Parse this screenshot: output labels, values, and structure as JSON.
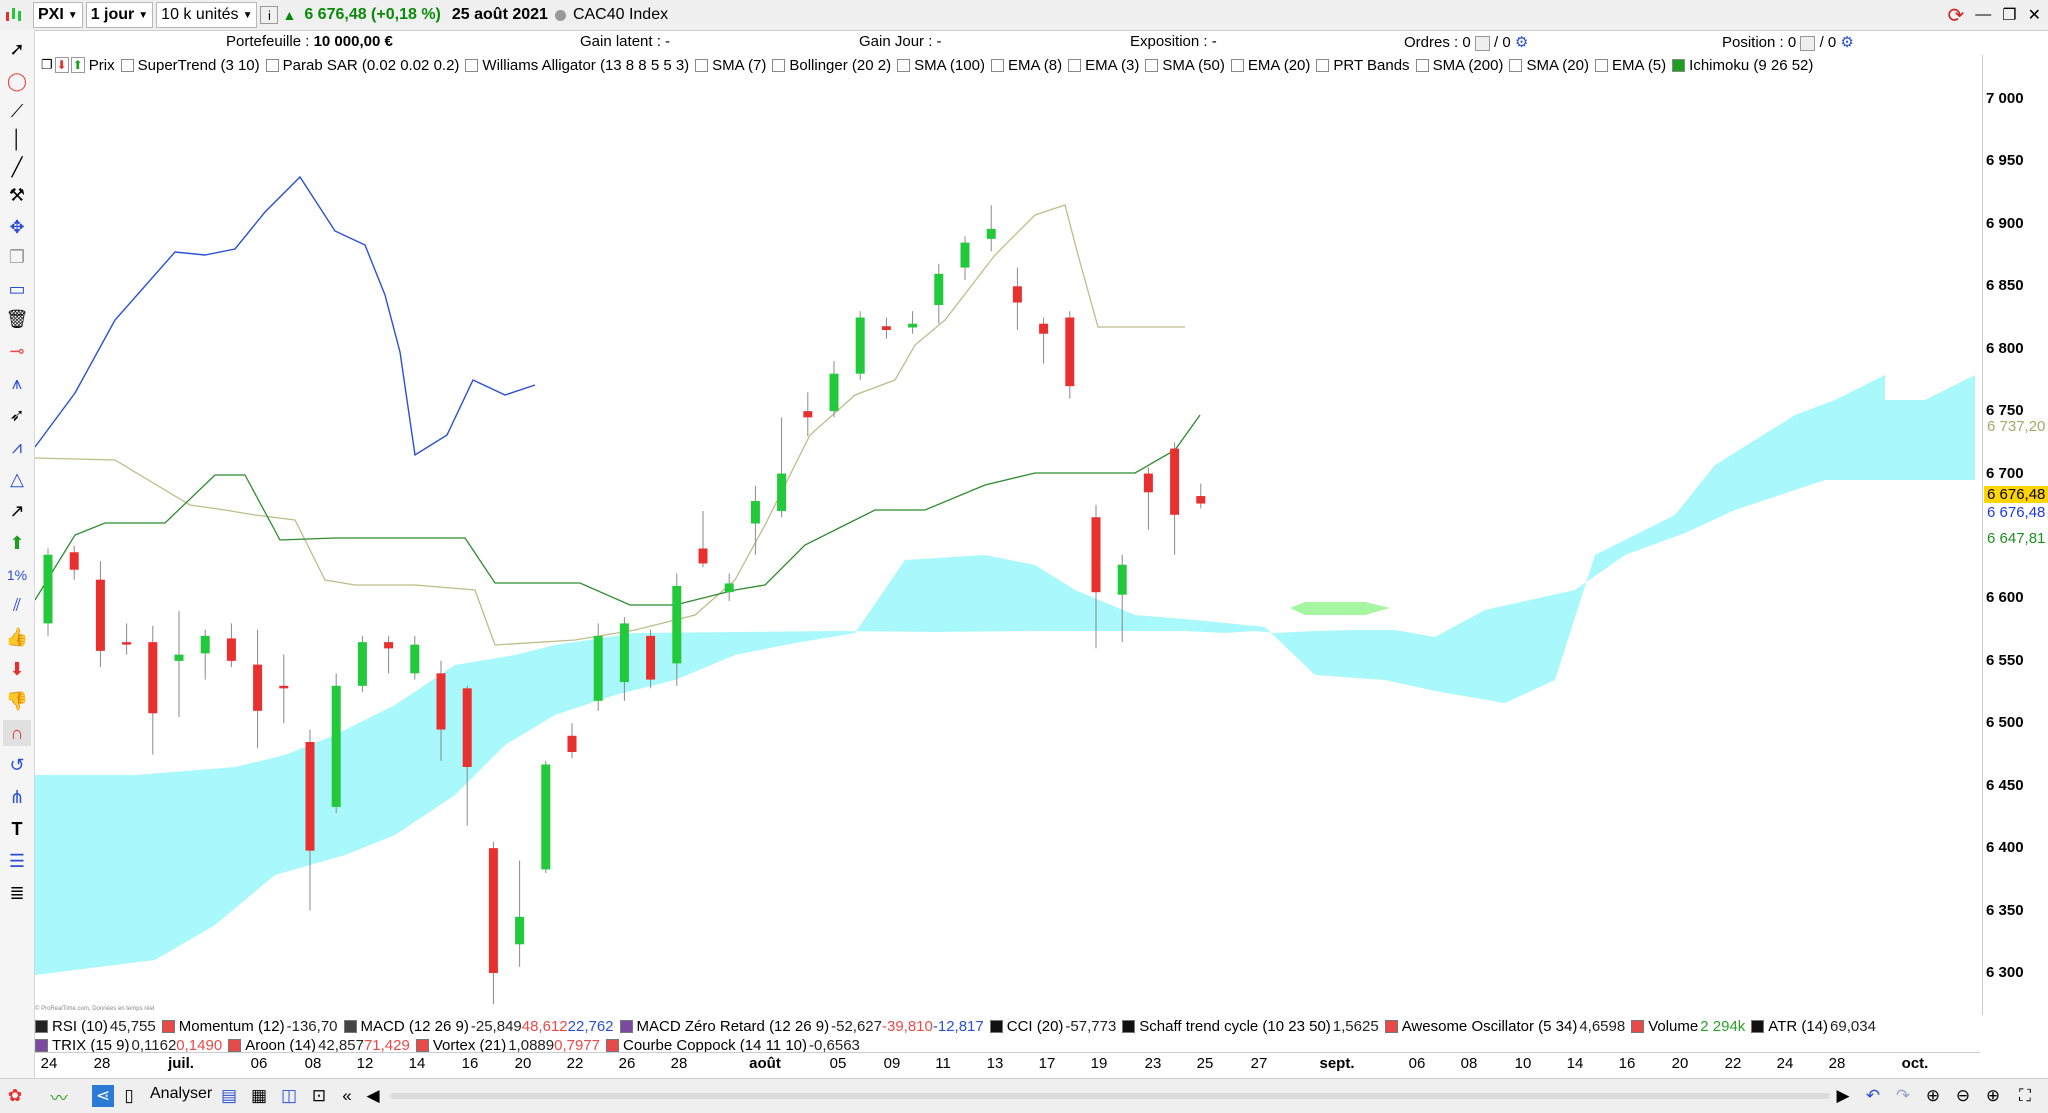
{
  "toolbar": {
    "instrument": "PXI",
    "timeframe": "1 jour",
    "units": "10 k unités",
    "price": "6 676,48 (+0,18 %)",
    "date": "25 août 2021",
    "index_name": "CAC40 Index"
  },
  "status": {
    "portefeuille_label": "Portefeuille :",
    "portefeuille_value": "10 000,00 €",
    "gain_latent": "Gain latent : -",
    "gain_jour": "Gain Jour : -",
    "exposition": "Exposition : -",
    "ordres_label": "Ordres :",
    "ordres_v1": "0",
    "ordres_v2": "/ 0",
    "position_label": "Position :",
    "position_v1": "0",
    "position_v2": "/ 0"
  },
  "legend": [
    "Prix",
    "SuperTrend (3 10)",
    "Parab SAR (0.02 0.02 0.2)",
    "Williams Alligator (13 8 8 5 5 3)",
    "SMA (7)",
    "Bollinger (20 2)",
    "SMA (100)",
    "EMA (8)",
    "EMA (3)",
    "SMA (50)",
    "EMA (20)",
    "PRT Bands",
    "SMA (200)",
    "SMA (20)",
    "EMA (5)",
    "Ichimoku (9 26 52)"
  ],
  "indicators_row1": [
    {
      "name": "RSI (10)",
      "values": [
        "45,755"
      ],
      "color": "#222222"
    },
    {
      "name": "Momentum (12)",
      "values": [
        "-136,70"
      ],
      "color": "#e84a4a"
    },
    {
      "name": "MACD (12 26 9)",
      "values": [
        "-25,849",
        "48,612",
        "22,762"
      ],
      "color": "#444444"
    },
    {
      "name": "MACD Zéro Retard (12 26 9)",
      "values": [
        "-52,627",
        "-39,810",
        "-12,817"
      ],
      "color": "#7b4aa0"
    },
    {
      "name": "CCI (20)",
      "values": [
        "-57,773"
      ],
      "color": "#111111"
    },
    {
      "name": "Schaff trend cycle (10 23 50)",
      "values": [
        "1,5625"
      ],
      "color": "#111111"
    },
    {
      "name": "Awesome Oscillator (5 34)",
      "values": [
        "4,6598"
      ],
      "color": "#e84a4a"
    },
    {
      "name": "Volume",
      "values": [
        "2 294k"
      ],
      "color": "#e84a4a"
    },
    {
      "name": "ATR (14)",
      "values": [
        "69,034"
      ],
      "color": "#111111"
    }
  ],
  "indicators_row2": [
    {
      "name": "TRIX (15 9)",
      "values": [
        "0,1162",
        "0,1490"
      ],
      "color": "#7b4aa0"
    },
    {
      "name": "Aroon (14)",
      "values": [
        "42,857",
        "71,429"
      ],
      "color": "#e84a4a"
    },
    {
      "name": "Vortex (21)",
      "values": [
        "1,0889",
        "0,7977"
      ],
      "color": "#e84a4a"
    },
    {
      "name": "Courbe Coppock (14 11 10)",
      "values": [
        "-0,6563"
      ],
      "color": "#e84a4a"
    }
  ],
  "y_axis": [
    "7 000",
    "6 950",
    "6 900",
    "6 850",
    "6 800",
    "6 750",
    "6 700",
    "6 650",
    "6 600",
    "6 550",
    "6 500",
    "6 450",
    "6 400",
    "6 350",
    "6 300"
  ],
  "y_tags": [
    {
      "text": "6 737,20",
      "color": "#a8a86a",
      "bg": "#ffffff"
    },
    {
      "text": "6 676,48",
      "color": "#000000",
      "bg": "#ffd400"
    },
    {
      "text": "6 676,48",
      "color": "#1e3ad9",
      "bg": "#ffffff"
    },
    {
      "text": "6 647,81",
      "color": "#1f8f1f",
      "bg": "#ffffff"
    }
  ],
  "x_axis": [
    "24",
    "28",
    "juil.",
    "06",
    "08",
    "12",
    "14",
    "16",
    "20",
    "22",
    "26",
    "28",
    "août",
    "05",
    "09",
    "11",
    "13",
    "17",
    "19",
    "23",
    "25",
    "27",
    "sept.",
    "06",
    "08",
    "10",
    "14",
    "16",
    "20",
    "22",
    "24",
    "28",
    "oct."
  ],
  "bottom": {
    "analyser": "Analyser"
  },
  "watermark": "© ProRealTime.com, Données en temps réel",
  "colors": {
    "up": "#22c93a",
    "down": "#e8302f",
    "cloud": "#a9f8fb",
    "cloud_green": "#a6f5a0",
    "tenkan": "#2a4fd6",
    "kijun": "#2e8b2e",
    "chikou": "#bdbd8a"
  },
  "chart_data": {
    "type": "candlestick",
    "series_name": "CAC40 Index",
    "candles": [
      {
        "d": "24 juin",
        "o": 6580,
        "h": 6640,
        "l": 6570,
        "c": 6635
      },
      {
        "d": "25 juin",
        "o": 6637,
        "h": 6642,
        "l": 6615,
        "c": 6623
      },
      {
        "d": "28 juin",
        "o": 6615,
        "h": 6630,
        "l": 6545,
        "c": 6558
      },
      {
        "d": "29 juin",
        "o": 6565,
        "h": 6580,
        "l": 6555,
        "c": 6563
      },
      {
        "d": "30 juin",
        "o": 6565,
        "h": 6578,
        "l": 6475,
        "c": 6508
      },
      {
        "d": "01 juil.",
        "o": 6550,
        "h": 6590,
        "l": 6505,
        "c": 6555
      },
      {
        "d": "02 juil.",
        "o": 6556,
        "h": 6575,
        "l": 6535,
        "c": 6570
      },
      {
        "d": "05 juil.",
        "o": 6568,
        "h": 6580,
        "l": 6545,
        "c": 6550
      },
      {
        "d": "06 juil.",
        "o": 6547,
        "h": 6575,
        "l": 6480,
        "c": 6510
      },
      {
        "d": "07 juil.",
        "o": 6530,
        "h": 6555,
        "l": 6500,
        "c": 6528
      },
      {
        "d": "08 juil.",
        "o": 6485,
        "h": 6495,
        "l": 6350,
        "c": 6398
      },
      {
        "d": "09 juil.",
        "o": 6433,
        "h": 6540,
        "l": 6428,
        "c": 6530
      },
      {
        "d": "12 juil.",
        "o": 6530,
        "h": 6570,
        "l": 6525,
        "c": 6565
      },
      {
        "d": "13 juil.",
        "o": 6565,
        "h": 6570,
        "l": 6540,
        "c": 6560
      },
      {
        "d": "14 juil.",
        "o": 6540,
        "h": 6570,
        "l": 6535,
        "c": 6563
      },
      {
        "d": "15 juil.",
        "o": 6540,
        "h": 6550,
        "l": 6470,
        "c": 6495
      },
      {
        "d": "16 juil.",
        "o": 6528,
        "h": 6530,
        "l": 6418,
        "c": 6465
      },
      {
        "d": "19 juil.",
        "o": 6400,
        "h": 6405,
        "l": 6275,
        "c": 6300
      },
      {
        "d": "20 juil.",
        "o": 6323,
        "h": 6390,
        "l": 6305,
        "c": 6345
      },
      {
        "d": "21 juil.",
        "o": 6383,
        "h": 6470,
        "l": 6380,
        "c": 6467
      },
      {
        "d": "22 juil.",
        "o": 6490,
        "h": 6500,
        "l": 6472,
        "c": 6477
      },
      {
        "d": "23 juil.",
        "o": 6518,
        "h": 6580,
        "l": 6510,
        "c": 6570
      },
      {
        "d": "26 juil.",
        "o": 6533,
        "h": 6585,
        "l": 6518,
        "c": 6580
      },
      {
        "d": "27 juil.",
        "o": 6570,
        "h": 6575,
        "l": 6528,
        "c": 6535
      },
      {
        "d": "28 juil.",
        "o": 6548,
        "h": 6620,
        "l": 6530,
        "c": 6610
      },
      {
        "d": "29 juil.",
        "o": 6640,
        "h": 6670,
        "l": 6625,
        "c": 6628
      },
      {
        "d": "30 juil.",
        "o": 6605,
        "h": 6620,
        "l": 6598,
        "c": 6612
      },
      {
        "d": "02 août",
        "o": 6660,
        "h": 6690,
        "l": 6635,
        "c": 6678
      },
      {
        "d": "03 août",
        "o": 6670,
        "h": 6745,
        "l": 6665,
        "c": 6700
      },
      {
        "d": "04 août",
        "o": 6750,
        "h": 6765,
        "l": 6730,
        "c": 6745
      },
      {
        "d": "05 août",
        "o": 6750,
        "h": 6790,
        "l": 6745,
        "c": 6780
      },
      {
        "d": "06 août",
        "o": 6780,
        "h": 6830,
        "l": 6775,
        "c": 6825
      },
      {
        "d": "09 août",
        "o": 6818,
        "h": 6825,
        "l": 6808,
        "c": 6815
      },
      {
        "d": "10 août",
        "o": 6817,
        "h": 6830,
        "l": 6812,
        "c": 6820
      },
      {
        "d": "11 août",
        "o": 6835,
        "h": 6868,
        "l": 6820,
        "c": 6860
      },
      {
        "d": "12 août",
        "o": 6865,
        "h": 6890,
        "l": 6855,
        "c": 6885
      },
      {
        "d": "13 août",
        "o": 6888,
        "h": 6915,
        "l": 6878,
        "c": 6896
      },
      {
        "d": "16 août",
        "o": 6850,
        "h": 6865,
        "l": 6815,
        "c": 6837
      },
      {
        "d": "17 août",
        "o": 6820,
        "h": 6825,
        "l": 6788,
        "c": 6812
      },
      {
        "d": "18 août",
        "o": 6825,
        "h": 6830,
        "l": 6760,
        "c": 6770
      },
      {
        "d": "19 août",
        "o": 6665,
        "h": 6675,
        "l": 6560,
        "c": 6605
      },
      {
        "d": "20 août",
        "o": 6603,
        "h": 6635,
        "l": 6565,
        "c": 6627
      },
      {
        "d": "23 août",
        "o": 6700,
        "h": 6705,
        "l": 6655,
        "c": 6685
      },
      {
        "d": "24 août",
        "o": 6720,
        "h": 6725,
        "l": 6635,
        "c": 6667
      },
      {
        "d": "25 août",
        "o": 6682,
        "h": 6692,
        "l": 6672,
        "c": 6676
      }
    ],
    "ylim": [
      6250,
      7010
    ],
    "y_ticks": [
      7000,
      6950,
      6900,
      6850,
      6800,
      6750,
      6700,
      6650,
      6600,
      6550,
      6500,
      6450,
      6400,
      6350,
      6300
    ]
  }
}
